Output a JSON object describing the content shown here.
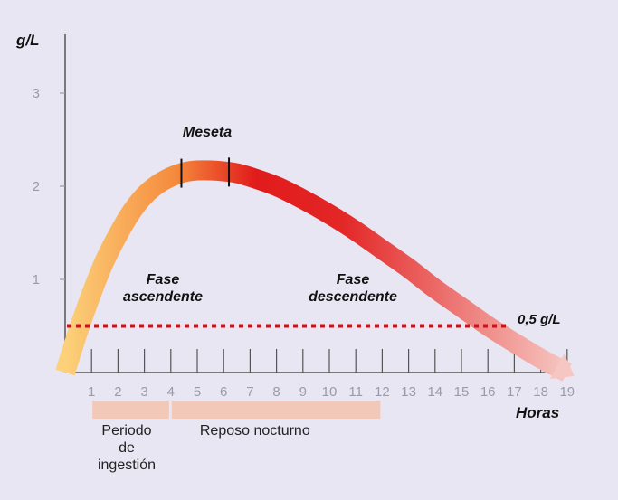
{
  "chart_data": {
    "type": "area",
    "ylabel": "g/L",
    "xlabel": "Horas",
    "y_ticks": [
      "1",
      "2",
      "3"
    ],
    "y_tick_values": [
      1,
      2,
      3
    ],
    "x_ticks": [
      "1",
      "2",
      "3",
      "4",
      "5",
      "6",
      "7",
      "8",
      "9",
      "10",
      "11",
      "12",
      "13",
      "14",
      "15",
      "16",
      "17",
      "18",
      "19"
    ],
    "xlim": [
      0,
      19
    ],
    "ylim": [
      0,
      3.5
    ],
    "curve": {
      "x": [
        0,
        0.5,
        1,
        1.5,
        2,
        2.5,
        3,
        3.5,
        4,
        4.5,
        5,
        5.5,
        6,
        6.5,
        7,
        8,
        9,
        10,
        11,
        12,
        13,
        14,
        15,
        16,
        17,
        18,
        19
      ],
      "y": [
        0.0,
        0.45,
        0.85,
        1.2,
        1.48,
        1.72,
        1.9,
        2.02,
        2.1,
        2.15,
        2.17,
        2.17,
        2.16,
        2.14,
        2.1,
        2.0,
        1.86,
        1.7,
        1.52,
        1.32,
        1.12,
        0.9,
        0.7,
        0.5,
        0.32,
        0.15,
        0.0
      ]
    },
    "plateau_markers_x": [
      4.4,
      6.2
    ],
    "threshold": {
      "value": 0.5,
      "label": "0,5 g/L",
      "color": "#c4161c"
    },
    "annotations": {
      "meseta": "Meseta",
      "fase_ascendente": [
        "Fase",
        "ascendente"
      ],
      "fase_descendente": [
        "Fase",
        "descendente"
      ]
    },
    "bands": [
      {
        "from": 1,
        "to": 4,
        "label": [
          "Periodo",
          "de",
          "ingestión"
        ],
        "color": "#f2c9b8"
      },
      {
        "from": 4,
        "to": 12,
        "label": [
          "Reposo nocturno"
        ],
        "color": "#f2c9b8"
      }
    ],
    "colors": {
      "curve_start": "#fcd17a",
      "curve_mid": "#e11b1b",
      "curve_end": "#f6c7c2",
      "axis": "#555555"
    }
  }
}
